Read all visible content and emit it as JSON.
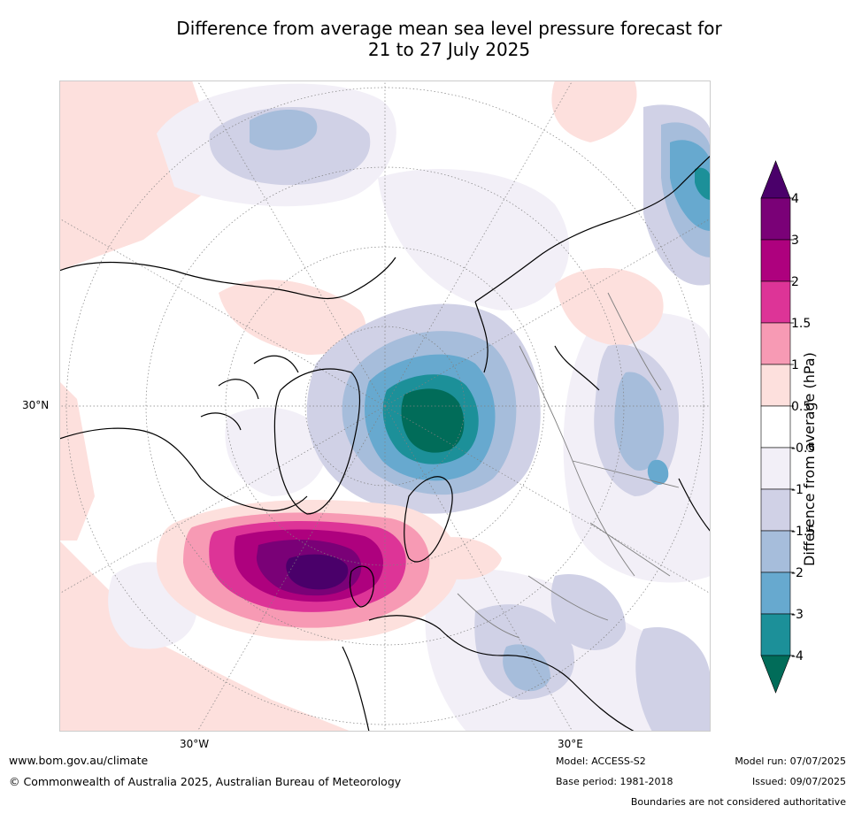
{
  "title": {
    "line1": "Difference from average mean sea level pressure forecast for",
    "line2": "21 to 27 July 2025"
  },
  "map": {
    "lat_label": "30°N",
    "lon_labels": [
      "30°W",
      "30°E"
    ],
    "colors": {
      "background": "#ffffff",
      "coast": "#000000",
      "borders": "#808080",
      "graticule": "#808080"
    }
  },
  "colorbar": {
    "title": "Difference from average (hPa)",
    "tick_labels": [
      "4",
      "3",
      "2",
      "1.5",
      "1",
      "0.5",
      "-0.5",
      "-1",
      "-1.5",
      "-2",
      "-3",
      "-4"
    ],
    "levels": [
      {
        "range": "above 4",
        "color": "#4a006a"
      },
      {
        "range": "3 to 4",
        "color": "#7a0177"
      },
      {
        "range": "2 to 3",
        "color": "#ae017e"
      },
      {
        "range": "1.5 to 2",
        "color": "#dd3497"
      },
      {
        "range": "1 to 1.5",
        "color": "#f79ab4"
      },
      {
        "range": "0.5 to 1",
        "color": "#fde0dd"
      },
      {
        "range": "-0.5 to 0.5",
        "color": "#ffffff"
      },
      {
        "range": "-1 to -0.5",
        "color": "#f2eff7"
      },
      {
        "range": "-1.5 to -1",
        "color": "#d0d1e6"
      },
      {
        "range": "-2 to -1.5",
        "color": "#a6bddb"
      },
      {
        "range": "-3 to -2",
        "color": "#67a9cf"
      },
      {
        "range": "-4 to -3",
        "color": "#1c9099"
      },
      {
        "range": "below -4",
        "color": "#016c59"
      }
    ]
  },
  "footer": {
    "website": "www.bom.gov.au/climate",
    "copyright": "© Commonwealth of Australia 2025, Australian Bureau of Meteorology",
    "model": "Model: ACCESS-S2",
    "base_period": "Base period: 1981-2018",
    "model_run": "Model run: 07/07/2025",
    "issued": "Issued: 09/07/2025",
    "disclaimer": "Boundaries are not considered authoritative"
  }
}
